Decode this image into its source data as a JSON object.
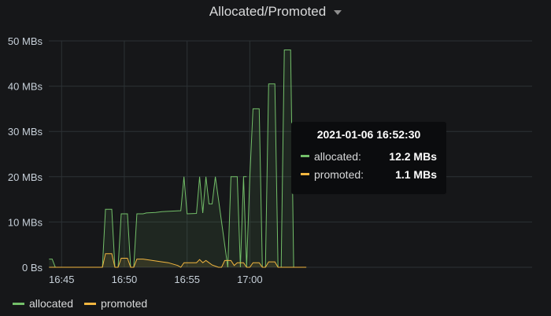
{
  "panel": {
    "title": "Allocated/Promoted"
  },
  "colors": {
    "allocated": "#73bf69",
    "promoted": "#f2b640",
    "grid": "#2c3235",
    "background": "#161719"
  },
  "tooltip": {
    "time": "2021-01-06 16:52:30",
    "rows": [
      {
        "name": "allocated:",
        "value": "12.2 MBs",
        "color": "#73bf69"
      },
      {
        "name": "promoted:",
        "value": "1.1 MBs",
        "color": "#f2b640"
      }
    ]
  },
  "legend": [
    {
      "label": "allocated",
      "color": "#73bf69"
    },
    {
      "label": "promoted",
      "color": "#f2b640"
    }
  ],
  "chart_data": {
    "type": "area",
    "xlabel": "",
    "ylabel": "",
    "xlim": [
      16.733,
      17.375
    ],
    "ylim": [
      0,
      50
    ],
    "x_ticks": [
      {
        "value": 16.75,
        "label": "16:45"
      },
      {
        "value": 16.8333,
        "label": "16:50"
      },
      {
        "value": 16.9167,
        "label": "16:55"
      },
      {
        "value": 17.0,
        "label": "17:00"
      }
    ],
    "y_ticks": [
      {
        "value": 0,
        "label": "0 Bs"
      },
      {
        "value": 10,
        "label": "10 MBs"
      },
      {
        "value": 20,
        "label": "20 MBs"
      },
      {
        "value": 30,
        "label": "30 MBs"
      },
      {
        "value": 40,
        "label": "40 MBs"
      },
      {
        "value": 50,
        "label": "50 MBs"
      }
    ],
    "grid": true,
    "legend_position": "bottom-left",
    "series": [
      {
        "name": "allocated",
        "color": "#73bf69",
        "points": [
          [
            16.7333,
            1.8
          ],
          [
            16.7375,
            1.8
          ],
          [
            16.7417,
            0
          ],
          [
            16.8042,
            0
          ],
          [
            16.8083,
            12.8
          ],
          [
            16.8167,
            12.8
          ],
          [
            16.8208,
            0
          ],
          [
            16.825,
            0
          ],
          [
            16.8292,
            11.8
          ],
          [
            16.8375,
            11.8
          ],
          [
            16.8417,
            0
          ],
          [
            16.8458,
            0
          ],
          [
            16.85,
            11.8
          ],
          [
            16.8583,
            11.8
          ],
          [
            16.8625,
            12.0
          ],
          [
            16.875,
            12.1
          ],
          [
            16.8833,
            12.3
          ],
          [
            16.8958,
            12.4
          ],
          [
            16.9083,
            12.5
          ],
          [
            16.9125,
            20.0
          ],
          [
            16.9167,
            11.8
          ],
          [
            16.9292,
            11.9
          ],
          [
            16.9333,
            20.0
          ],
          [
            16.9375,
            12.0
          ],
          [
            16.9417,
            20.0
          ],
          [
            16.9458,
            14.0
          ],
          [
            16.95,
            14.0
          ],
          [
            16.9542,
            20.0
          ],
          [
            16.9708,
            0
          ],
          [
            16.975,
            20.0
          ],
          [
            16.9833,
            20.0
          ],
          [
            16.9875,
            0
          ],
          [
            16.9917,
            20.0
          ],
          [
            16.9958,
            20.0
          ],
          [
            16.9917,
            20.0
          ],
          [
            16.9958,
            0
          ],
          [
            17.0,
            20.0
          ],
          [
            17.0042,
            35.0
          ],
          [
            17.0125,
            35.0
          ],
          [
            17.0167,
            0
          ],
          [
            17.0208,
            0
          ],
          [
            17.025,
            40.5
          ],
          [
            17.0333,
            40.5
          ],
          [
            17.0375,
            0
          ],
          [
            17.0417,
            0
          ],
          [
            17.0458,
            48.0
          ],
          [
            17.0542,
            48.0
          ],
          [
            17.0583,
            0
          ],
          [
            17.075,
            0
          ]
        ]
      },
      {
        "name": "promoted",
        "color": "#f2b640",
        "points": [
          [
            16.7333,
            0
          ],
          [
            16.8042,
            0
          ],
          [
            16.8083,
            3.0
          ],
          [
            16.8167,
            3.0
          ],
          [
            16.8208,
            0
          ],
          [
            16.825,
            0
          ],
          [
            16.8292,
            2.0
          ],
          [
            16.8375,
            2.0
          ],
          [
            16.8417,
            0
          ],
          [
            16.8458,
            0
          ],
          [
            16.85,
            1.8
          ],
          [
            16.8583,
            1.8
          ],
          [
            16.8708,
            1.5
          ],
          [
            16.8833,
            1.2
          ],
          [
            16.8917,
            1.0
          ],
          [
            16.9042,
            0.4
          ],
          [
            16.9083,
            0
          ],
          [
            16.9125,
            1.0
          ],
          [
            16.9292,
            1.0
          ],
          [
            16.9333,
            1.7
          ],
          [
            16.9375,
            1.0
          ],
          [
            16.9417,
            1.5
          ],
          [
            16.9458,
            1.0
          ],
          [
            16.95,
            0.5
          ],
          [
            16.9583,
            0
          ],
          [
            16.9625,
            0
          ],
          [
            16.9667,
            1.5
          ],
          [
            16.975,
            1.5
          ],
          [
            16.9792,
            0.4
          ],
          [
            16.9833,
            1.0
          ],
          [
            16.9917,
            1.0
          ],
          [
            16.9958,
            0
          ],
          [
            17.0,
            0
          ],
          [
            17.0042,
            1.0
          ],
          [
            17.0125,
            1.0
          ],
          [
            17.0167,
            0
          ],
          [
            17.0208,
            0
          ],
          [
            17.025,
            1.2
          ],
          [
            17.0333,
            1.2
          ],
          [
            17.0375,
            0
          ],
          [
            17.075,
            0
          ]
        ]
      }
    ]
  }
}
